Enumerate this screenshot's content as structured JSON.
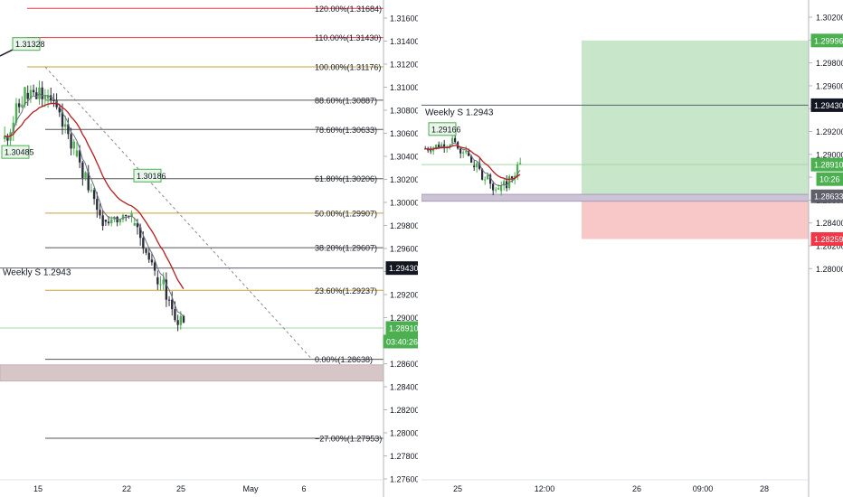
{
  "left_chart": {
    "price_axis": {
      "ticks": [
        "1.31600",
        "1.31400",
        "1.31200",
        "1.31000",
        "1.30800",
        "1.30600",
        "1.30400",
        "1.30200",
        "1.30000",
        "1.29800",
        "1.29600",
        "1.29400",
        "1.29200",
        "1.29000",
        "1.28800",
        "1.28600",
        "1.28400",
        "1.28200",
        "1.28000",
        "1.27800",
        "1.27600"
      ]
    },
    "time_axis": {
      "ticks": [
        "15",
        "22",
        "25",
        "May",
        "6"
      ]
    },
    "fib_levels": [
      {
        "label": "120.00%(1.31684)",
        "price": 1.31684,
        "color": "#f23645"
      },
      {
        "label": "110.00%(1.31430)",
        "price": 1.3143,
        "color": "#f23645"
      },
      {
        "label": "100.00%(1.31176)",
        "price": 1.31176,
        "color": "#c8a23c"
      },
      {
        "label": "88.60%(1.30887)",
        "price": 1.30887,
        "color": "#555555"
      },
      {
        "label": "78.60%(1.30633)",
        "price": 1.30633,
        "color": "#555555"
      },
      {
        "label": "61.80%(1.30206)",
        "price": 1.30206,
        "color": "#555555"
      },
      {
        "label": "50.00%(1.29907)",
        "price": 1.29907,
        "color": "#c8a23c"
      },
      {
        "label": "38.20%(1.29607)",
        "price": 1.29607,
        "color": "#555555"
      },
      {
        "label": "23.60%(1.29237)",
        "price": 1.29237,
        "color": "#c8a23c"
      },
      {
        "label": "0.00%(1.28638)",
        "price": 1.28638,
        "color": "#555555"
      },
      {
        "label": "−27.00%(1.27953)",
        "price": 1.27953,
        "color": "#555555"
      }
    ],
    "callouts": [
      {
        "text": "1.31328",
        "price": 1.31328
      },
      {
        "text": "1.30485",
        "price": 1.30485
      },
      {
        "text": "1.30186",
        "price": 1.30186
      }
    ],
    "weekly_label": "Weekly S 1.2943",
    "weekly_price": 1.2943,
    "weekly_badge": "1.29430",
    "current_price_badge": "1.28910",
    "current_price": 1.2891,
    "countdown": "03:40:26",
    "support_zone": {
      "from": 1.2845,
      "to": 1.2859
    }
  },
  "right_chart": {
    "price_axis": {
      "ticks": [
        "1.30200",
        "1.30000",
        "1.29800",
        "1.29600",
        "1.29400",
        "1.29200",
        "1.29000",
        "1.28800",
        "1.28600",
        "1.28400",
        "1.28200",
        "1.28000"
      ]
    },
    "time_axis": {
      "ticks": [
        "25",
        "12:00",
        "26",
        "09:00",
        "28"
      ]
    },
    "weekly_label": "Weekly S 1.2943",
    "weekly_price": 1.2943,
    "weekly_badge": "1.29430",
    "callout": {
      "text": "1.29166",
      "price": 1.29166
    },
    "target_badge": "1.29996",
    "target_price": 1.29996,
    "current_price_badge": "1.28910",
    "current_price": 1.2891,
    "countdown": "10:26",
    "entry_badge": "1.28633",
    "entry_price": 1.28633,
    "stop_badge": "1.28259",
    "stop_price": 1.28259,
    "support_zone": {
      "from": 1.2859,
      "to": 1.2865
    }
  },
  "colors": {
    "bull": "#4caf50",
    "bear": "#2a2e39",
    "ema_fast": "#6b7280",
    "ema_slow": "#b71c1c",
    "profit_zone": "#c8e6c9",
    "loss_zone": "#f8c7c7"
  }
}
